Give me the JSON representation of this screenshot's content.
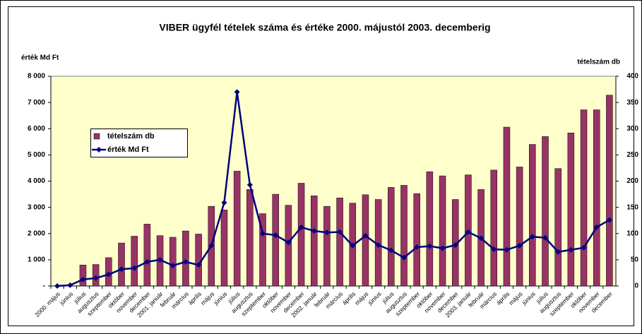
{
  "chart_data": {
    "type": "combo",
    "title": "VIBER ügyfél tételek száma és értéke 2000. májustól 2003. decemberig",
    "y_label": "érték Md Ft",
    "y2_label": "tételszám db",
    "categories": [
      "2000. május",
      "június",
      "július",
      "augusztus",
      "szeptember",
      "október",
      "november",
      "december",
      "2001. január",
      "február",
      "március",
      "április",
      "május",
      "június",
      "július",
      "augusztus",
      "szeptember",
      "október",
      "november",
      "december",
      "2002. január",
      "február",
      "március",
      "április",
      "május",
      "június",
      "július",
      "augusztus",
      "szeptember",
      "október",
      "november",
      "december",
      "2003. január",
      "február",
      "március",
      "április",
      "május",
      "június",
      "július",
      "augusztus",
      "szeptember",
      "október",
      "november",
      "december"
    ],
    "series": [
      {
        "name": "tételszám db",
        "type": "bar",
        "axis": "y2",
        "color": "#993366",
        "values": [
          0,
          0,
          40,
          41,
          54,
          82,
          95,
          118,
          96,
          93,
          105,
          99,
          152,
          145,
          219,
          184,
          138,
          175,
          154,
          196,
          172,
          152,
          168,
          158,
          174,
          165,
          188,
          192,
          176,
          218,
          210,
          165,
          212,
          184,
          221,
          303,
          227,
          270,
          285,
          224,
          292,
          336,
          336,
          364
        ]
      },
      {
        "name": "érték Md Ft",
        "type": "line",
        "axis": "y",
        "color": "#000080",
        "values": [
          0,
          30,
          250,
          300,
          440,
          640,
          680,
          920,
          1000,
          780,
          920,
          800,
          1540,
          3180,
          7400,
          3860,
          2000,
          1940,
          1660,
          2240,
          2100,
          2040,
          2060,
          1540,
          1920,
          1560,
          1360,
          1080,
          1480,
          1520,
          1440,
          1560,
          2060,
          1820,
          1400,
          1380,
          1540,
          1880,
          1840,
          1300,
          1380,
          1460,
          2240,
          2520
        ]
      }
    ],
    "ylim": [
      0,
      8000
    ],
    "yticks": [
      {
        "value": 0,
        "label": "-"
      },
      {
        "value": 1000,
        "label": "1 000"
      },
      {
        "value": 2000,
        "label": "2 000"
      },
      {
        "value": 3000,
        "label": "3 000"
      },
      {
        "value": 4000,
        "label": "4 000"
      },
      {
        "value": 5000,
        "label": "5 000"
      },
      {
        "value": 6000,
        "label": "6 000"
      },
      {
        "value": 7000,
        "label": "7 000"
      },
      {
        "value": 8000,
        "label": "8 000"
      }
    ],
    "y2lim": [
      0,
      400
    ],
    "y2ticks": [
      0,
      50,
      100,
      150,
      200,
      250,
      300,
      350,
      400
    ],
    "plot_background": "#ffffcc"
  }
}
